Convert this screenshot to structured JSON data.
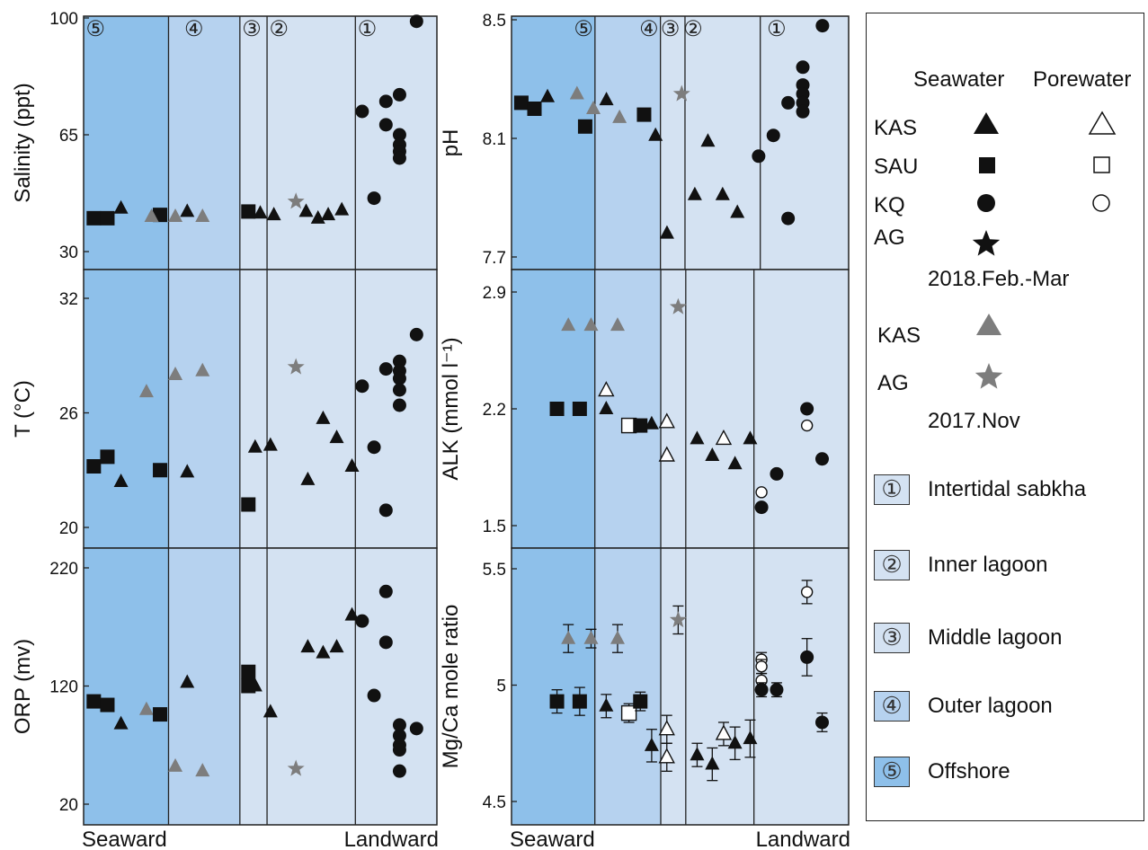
{
  "legend": {
    "header_seawater": "Seawater",
    "header_porewater": "Porewater",
    "rows_2018": [
      "KAS",
      "SAU",
      "KQ",
      "AG"
    ],
    "period_2018": "2018.Feb.-Mar",
    "rows_2017": [
      "KAS",
      "AG"
    ],
    "period_2017": "2017.Nov",
    "zones": [
      {
        "num": "①",
        "label": "Intertidal sabkha",
        "color": "#d4e2f2"
      },
      {
        "num": "②",
        "label": "Inner lagoon",
        "color": "#d4e2f2"
      },
      {
        "num": "③",
        "label": "Middle lagoon",
        "color": "#d4e2f2"
      },
      {
        "num": "④",
        "label": "Outer lagoon",
        "color": "#b6d2ef"
      },
      {
        "num": "⑤",
        "label": "Offshore",
        "color": "#8ec0ea"
      }
    ]
  },
  "zone_numbers": [
    "⑤",
    "④",
    "③",
    "②",
    "①"
  ],
  "x_labels": {
    "left": "Seaward",
    "right": "Landward"
  },
  "chart_data": [
    {
      "type": "scatter",
      "ylabel": "Salinity (ppt)",
      "ylim": [
        30,
        100
      ],
      "yticks": [
        "100",
        "65",
        "30"
      ],
      "points": [
        {
          "x": 0.3,
          "y": 40,
          "m": "square"
        },
        {
          "x": 0.7,
          "y": 40,
          "m": "square"
        },
        {
          "x": 1.1,
          "y": 43,
          "m": "tri"
        },
        {
          "x": 2.25,
          "y": 41,
          "m": "square"
        },
        {
          "x": 2.0,
          "y": 40.5,
          "m": "tri",
          "c": "gray"
        },
        {
          "x": 2.7,
          "y": 40.5,
          "m": "tri",
          "c": "gray"
        },
        {
          "x": 3.05,
          "y": 42,
          "m": "tri"
        },
        {
          "x": 3.5,
          "y": 40.5,
          "m": "tri",
          "c": "gray"
        },
        {
          "x": 4.85,
          "y": 42,
          "m": "square"
        },
        {
          "x": 5.2,
          "y": 41.5,
          "m": "tri"
        },
        {
          "x": 5.6,
          "y": 41,
          "m": "tri"
        },
        {
          "x": 6.25,
          "y": 45,
          "m": "star",
          "c": "gray"
        },
        {
          "x": 6.55,
          "y": 42,
          "m": "tri"
        },
        {
          "x": 6.9,
          "y": 40,
          "m": "tri"
        },
        {
          "x": 7.2,
          "y": 41,
          "m": "tri"
        },
        {
          "x": 7.6,
          "y": 42.5,
          "m": "tri"
        },
        {
          "x": 8.2,
          "y": 72,
          "m": "circle"
        },
        {
          "x": 8.55,
          "y": 46,
          "m": "circle"
        },
        {
          "x": 8.9,
          "y": 75,
          "m": "circle"
        },
        {
          "x": 8.9,
          "y": 68,
          "m": "circle"
        },
        {
          "x": 9.3,
          "y": 77,
          "m": "circle"
        },
        {
          "x": 9.3,
          "y": 65,
          "m": "circle"
        },
        {
          "x": 9.3,
          "y": 62,
          "m": "circle"
        },
        {
          "x": 9.3,
          "y": 60,
          "m": "circle"
        },
        {
          "x": 9.3,
          "y": 58,
          "m": "circle"
        },
        {
          "x": 9.8,
          "y": 99,
          "m": "circle"
        }
      ]
    },
    {
      "type": "scatter",
      "ylabel": "pH",
      "ylim": [
        7.7,
        8.5
      ],
      "yticks": [
        "8.5",
        "8.1",
        "7.7"
      ],
      "points": [
        {
          "x": 0.3,
          "y": 8.22,
          "m": "square"
        },
        {
          "x": 0.7,
          "y": 8.2,
          "m": "square"
        },
        {
          "x": 1.1,
          "y": 8.24,
          "m": "tri"
        },
        {
          "x": 2.0,
          "y": 8.25,
          "m": "tri",
          "c": "gray"
        },
        {
          "x": 2.25,
          "y": 8.14,
          "m": "square"
        },
        {
          "x": 2.5,
          "y": 8.2,
          "m": "tri",
          "c": "gray"
        },
        {
          "x": 2.9,
          "y": 8.23,
          "m": "tri"
        },
        {
          "x": 3.3,
          "y": 8.17,
          "m": "tri",
          "c": "gray"
        },
        {
          "x": 4.05,
          "y": 8.18,
          "m": "square"
        },
        {
          "x": 4.4,
          "y": 8.11,
          "m": "tri"
        },
        {
          "x": 4.75,
          "y": 7.78,
          "m": "tri"
        },
        {
          "x": 5.2,
          "y": 8.25,
          "m": "star",
          "c": "gray"
        },
        {
          "x": 5.6,
          "y": 7.91,
          "m": "tri"
        },
        {
          "x": 6.0,
          "y": 8.09,
          "m": "tri"
        },
        {
          "x": 6.45,
          "y": 7.91,
          "m": "tri"
        },
        {
          "x": 6.9,
          "y": 7.85,
          "m": "tri"
        },
        {
          "x": 7.55,
          "y": 8.04,
          "m": "circle"
        },
        {
          "x": 8.0,
          "y": 8.11,
          "m": "circle"
        },
        {
          "x": 8.45,
          "y": 8.22,
          "m": "circle"
        },
        {
          "x": 8.45,
          "y": 7.83,
          "m": "circle"
        },
        {
          "x": 8.9,
          "y": 8.34,
          "m": "circle"
        },
        {
          "x": 8.9,
          "y": 8.28,
          "m": "circle"
        },
        {
          "x": 8.9,
          "y": 8.25,
          "m": "circle"
        },
        {
          "x": 8.9,
          "y": 8.22,
          "m": "circle"
        },
        {
          "x": 8.9,
          "y": 8.19,
          "m": "circle"
        },
        {
          "x": 9.5,
          "y": 8.48,
          "m": "circle"
        }
      ]
    },
    {
      "type": "scatter",
      "ylabel": "T (°C)",
      "ylim": [
        20,
        32
      ],
      "yticks": [
        "32",
        "26",
        "20"
      ],
      "points": [
        {
          "x": 0.3,
          "y": 23.2,
          "m": "square"
        },
        {
          "x": 0.7,
          "y": 23.7,
          "m": "square"
        },
        {
          "x": 1.1,
          "y": 22.4,
          "m": "tri"
        },
        {
          "x": 1.85,
          "y": 27.1,
          "m": "tri",
          "c": "gray"
        },
        {
          "x": 2.25,
          "y": 23.0,
          "m": "square"
        },
        {
          "x": 2.7,
          "y": 28.0,
          "m": "tri",
          "c": "gray"
        },
        {
          "x": 3.05,
          "y": 22.9,
          "m": "tri"
        },
        {
          "x": 3.5,
          "y": 28.2,
          "m": "tri",
          "c": "gray"
        },
        {
          "x": 4.85,
          "y": 21.2,
          "m": "square"
        },
        {
          "x": 5.05,
          "y": 24.2,
          "m": "tri"
        },
        {
          "x": 5.5,
          "y": 24.3,
          "m": "tri"
        },
        {
          "x": 6.25,
          "y": 28.4,
          "m": "star",
          "c": "gray"
        },
        {
          "x": 6.6,
          "y": 22.5,
          "m": "tri"
        },
        {
          "x": 7.05,
          "y": 25.7,
          "m": "tri"
        },
        {
          "x": 7.45,
          "y": 24.7,
          "m": "tri"
        },
        {
          "x": 7.9,
          "y": 23.2,
          "m": "tri"
        },
        {
          "x": 8.2,
          "y": 27.4,
          "m": "circle"
        },
        {
          "x": 8.55,
          "y": 24.2,
          "m": "circle"
        },
        {
          "x": 8.9,
          "y": 28.3,
          "m": "circle"
        },
        {
          "x": 8.9,
          "y": 20.9,
          "m": "circle"
        },
        {
          "x": 9.3,
          "y": 28.7,
          "m": "circle"
        },
        {
          "x": 9.3,
          "y": 28.2,
          "m": "circle"
        },
        {
          "x": 9.3,
          "y": 27.8,
          "m": "circle"
        },
        {
          "x": 9.3,
          "y": 27.2,
          "m": "circle"
        },
        {
          "x": 9.3,
          "y": 26.4,
          "m": "circle"
        },
        {
          "x": 9.8,
          "y": 30.1,
          "m": "circle"
        }
      ]
    },
    {
      "type": "scatter",
      "ylabel": "ALK (mmol l⁻¹)",
      "ylim": [
        1.5,
        2.9
      ],
      "yticks": [
        "2.9",
        "2.2",
        "1.5"
      ],
      "points": [
        {
          "x": 0.6,
          "y": 2.2,
          "m": "square"
        },
        {
          "x": 0.9,
          "y": 2.2,
          "m": "square"
        },
        {
          "x": 0.75,
          "y": 2.7,
          "m": "tri",
          "c": "gray"
        },
        {
          "x": 1.05,
          "y": 2.7,
          "m": "tri",
          "c": "gray"
        },
        {
          "x": 1.4,
          "y": 2.7,
          "m": "tri",
          "c": "gray"
        },
        {
          "x": 1.25,
          "y": 2.2,
          "m": "tri"
        },
        {
          "x": 1.25,
          "y": 2.31,
          "m": "tri",
          "open": true
        },
        {
          "x": 1.55,
          "y": 2.1,
          "m": "square",
          "open": true
        },
        {
          "x": 1.7,
          "y": 2.1,
          "m": "square"
        },
        {
          "x": 1.85,
          "y": 2.11,
          "m": "tri"
        },
        {
          "x": 2.05,
          "y": 2.12,
          "m": "tri",
          "open": true
        },
        {
          "x": 2.05,
          "y": 1.92,
          "m": "tri",
          "open": true
        },
        {
          "x": 2.2,
          "y": 2.81,
          "m": "star",
          "c": "gray"
        },
        {
          "x": 2.45,
          "y": 2.02,
          "m": "tri"
        },
        {
          "x": 2.65,
          "y": 1.92,
          "m": "tri"
        },
        {
          "x": 2.8,
          "y": 2.02,
          "m": "tri",
          "open": true
        },
        {
          "x": 2.95,
          "y": 1.87,
          "m": "tri"
        },
        {
          "x": 3.15,
          "y": 2.02,
          "m": "tri"
        },
        {
          "x": 3.3,
          "y": 1.7,
          "m": "circle",
          "open": true
        },
        {
          "x": 3.3,
          "y": 1.61,
          "m": "circle"
        },
        {
          "x": 3.5,
          "y": 1.81,
          "m": "circle"
        },
        {
          "x": 3.9,
          "y": 2.2,
          "m": "circle"
        },
        {
          "x": 3.9,
          "y": 2.1,
          "m": "circle",
          "open": true
        },
        {
          "x": 4.1,
          "y": 1.9,
          "m": "circle"
        }
      ]
    },
    {
      "type": "scatter",
      "ylabel": "ORP (mv)",
      "ylim": [
        20,
        220
      ],
      "yticks": [
        "220",
        "120",
        "20"
      ],
      "points": [
        {
          "x": 0.3,
          "y": 107,
          "m": "square"
        },
        {
          "x": 0.7,
          "y": 104,
          "m": "square"
        },
        {
          "x": 1.1,
          "y": 88,
          "m": "tri"
        },
        {
          "x": 1.85,
          "y": 100,
          "m": "tri",
          "c": "gray"
        },
        {
          "x": 2.25,
          "y": 96,
          "m": "square"
        },
        {
          "x": 2.7,
          "y": 52,
          "m": "tri",
          "c": "gray"
        },
        {
          "x": 3.05,
          "y": 123,
          "m": "tri"
        },
        {
          "x": 3.5,
          "y": 48,
          "m": "tri",
          "c": "gray"
        },
        {
          "x": 4.85,
          "y": 132,
          "m": "square"
        },
        {
          "x": 4.85,
          "y": 120,
          "m": "square"
        },
        {
          "x": 5.05,
          "y": 120,
          "m": "tri"
        },
        {
          "x": 5.5,
          "y": 98,
          "m": "tri"
        },
        {
          "x": 6.25,
          "y": 50,
          "m": "star",
          "c": "gray"
        },
        {
          "x": 6.6,
          "y": 153,
          "m": "tri"
        },
        {
          "x": 7.05,
          "y": 148,
          "m": "tri"
        },
        {
          "x": 7.45,
          "y": 153,
          "m": "tri"
        },
        {
          "x": 7.9,
          "y": 180,
          "m": "tri"
        },
        {
          "x": 8.2,
          "y": 175,
          "m": "circle"
        },
        {
          "x": 8.55,
          "y": 112,
          "m": "circle"
        },
        {
          "x": 8.9,
          "y": 200,
          "m": "circle"
        },
        {
          "x": 8.9,
          "y": 157,
          "m": "circle"
        },
        {
          "x": 9.3,
          "y": 87,
          "m": "circle"
        },
        {
          "x": 9.3,
          "y": 78,
          "m": "circle"
        },
        {
          "x": 9.3,
          "y": 70,
          "m": "circle"
        },
        {
          "x": 9.3,
          "y": 66,
          "m": "circle"
        },
        {
          "x": 9.3,
          "y": 48,
          "m": "circle"
        },
        {
          "x": 9.8,
          "y": 84,
          "m": "circle"
        }
      ]
    },
    {
      "type": "scatter",
      "ylabel": "Mg/Ca mole ratio",
      "ylim": [
        4.5,
        5.5
      ],
      "yticks": [
        "5.5",
        "5",
        "4.5"
      ],
      "points": [
        {
          "x": 0.6,
          "y": 4.93,
          "m": "square",
          "err": 0.05
        },
        {
          "x": 0.9,
          "y": 4.93,
          "m": "square",
          "err": 0.06
        },
        {
          "x": 0.75,
          "y": 5.2,
          "m": "tri",
          "c": "gray",
          "err": 0.06
        },
        {
          "x": 1.05,
          "y": 5.2,
          "m": "tri",
          "c": "gray",
          "err": 0.04
        },
        {
          "x": 1.25,
          "y": 4.91,
          "m": "tri",
          "err": 0.05
        },
        {
          "x": 1.4,
          "y": 5.2,
          "m": "tri",
          "c": "gray",
          "err": 0.06
        },
        {
          "x": 1.55,
          "y": 4.88,
          "m": "square",
          "open": true,
          "err": 0.04
        },
        {
          "x": 1.7,
          "y": 4.93,
          "m": "square",
          "err": 0.04
        },
        {
          "x": 1.85,
          "y": 4.74,
          "m": "tri",
          "err": 0.07
        },
        {
          "x": 2.05,
          "y": 4.81,
          "m": "tri",
          "open": true,
          "err": 0.06
        },
        {
          "x": 2.05,
          "y": 4.69,
          "m": "tri",
          "open": true,
          "err": 0.06
        },
        {
          "x": 2.2,
          "y": 5.28,
          "m": "star",
          "c": "gray",
          "err": 0.06
        },
        {
          "x": 2.45,
          "y": 4.7,
          "m": "tri",
          "err": 0.05
        },
        {
          "x": 2.65,
          "y": 4.66,
          "m": "tri",
          "err": 0.07
        },
        {
          "x": 2.8,
          "y": 4.79,
          "m": "tri",
          "open": true,
          "err": 0.05
        },
        {
          "x": 2.95,
          "y": 4.75,
          "m": "tri",
          "err": 0.07
        },
        {
          "x": 3.15,
          "y": 4.77,
          "m": "tri",
          "err": 0.08
        },
        {
          "x": 3.3,
          "y": 5.11,
          "m": "circle",
          "open": true,
          "err": 0.03
        },
        {
          "x": 3.3,
          "y": 5.08,
          "m": "circle",
          "open": true,
          "err": 0.03
        },
        {
          "x": 3.3,
          "y": 5.02,
          "m": "circle",
          "open": true,
          "err": 0.03
        },
        {
          "x": 3.3,
          "y": 4.98,
          "m": "circle",
          "err": 0.03
        },
        {
          "x": 3.5,
          "y": 4.98,
          "m": "circle",
          "err": 0.03
        },
        {
          "x": 3.9,
          "y": 5.12,
          "m": "circle",
          "err": 0.08
        },
        {
          "x": 3.9,
          "y": 5.4,
          "m": "circle",
          "open": true,
          "err": 0.05
        },
        {
          "x": 4.1,
          "y": 4.84,
          "m": "circle",
          "err": 0.04
        }
      ]
    }
  ]
}
